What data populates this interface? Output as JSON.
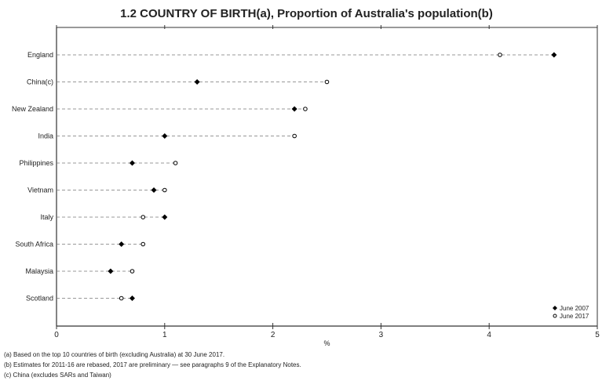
{
  "chart_data": {
    "type": "dot-plot",
    "title": "1.2 COUNTRY OF BIRTH(a), Proportion of Australia's population(b)",
    "xlabel": "%",
    "xlim": [
      0,
      5
    ],
    "xticks": [
      "0",
      "1",
      "2",
      "3",
      "4",
      "5"
    ],
    "grid": false,
    "legend_placement": "bottom-right",
    "categories": [
      "England",
      "China(c)",
      "New Zealand",
      "India",
      "Philippines",
      "Vietnam",
      "Italy",
      "South Africa",
      "Malaysia",
      "Scotland"
    ],
    "series": [
      {
        "name": "June 2007",
        "marker": "filled-diamond",
        "color": "#000000",
        "values": [
          4.6,
          1.3,
          2.2,
          1.0,
          0.7,
          0.9,
          1.0,
          0.6,
          0.5,
          0.7
        ]
      },
      {
        "name": "June 2017",
        "marker": "open-circle",
        "color": "#000000",
        "values": [
          4.1,
          2.5,
          2.3,
          2.2,
          1.1,
          1.0,
          0.8,
          0.8,
          0.7,
          0.6
        ]
      }
    ]
  },
  "footnotes": [
    "(a) Based on the top 10 countries of birth (excluding Australia) at 30 June 2017.",
    "(b) Estimates for 2011-16 are rebased, 2017 are preliminary — see paragraphs 9 of the Explanatory Notes.",
    "(c) China (excludes SARs and Taiwan)"
  ]
}
